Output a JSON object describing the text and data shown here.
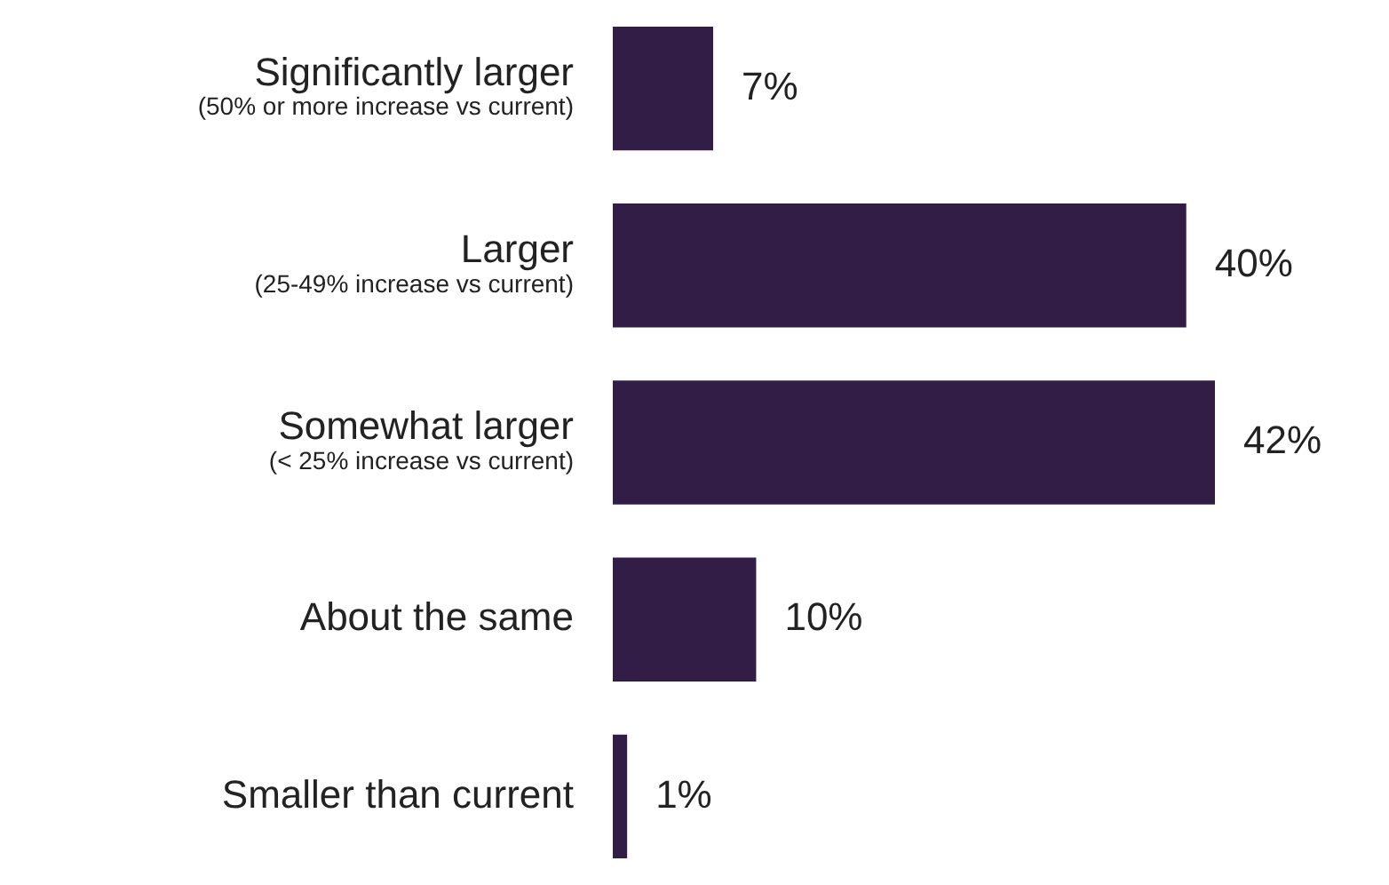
{
  "chart_data": {
    "type": "bar",
    "orientation": "horizontal",
    "categories": [
      "Significantly larger\n(50% or more increase vs current)",
      "Larger\n(25-49% increase vs current)",
      "Somewhat larger\n(< 25% increase vs current)",
      "About the same",
      "Smaller than current"
    ],
    "values": [
      7,
      40,
      42,
      10,
      1
    ],
    "value_labels": [
      "7%",
      "40%",
      "42%",
      "10%",
      "1%"
    ],
    "color": "#321d47",
    "legend": false
  }
}
